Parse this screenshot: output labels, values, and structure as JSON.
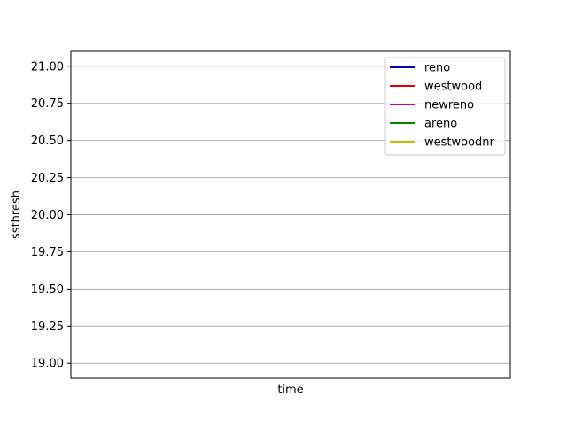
{
  "chart_data": {
    "type": "line",
    "title": "",
    "xlabel": "time",
    "ylabel": "ssthresh",
    "ylim": [
      18.9,
      21.1
    ],
    "yticks": [
      19.0,
      19.25,
      19.5,
      19.75,
      20.0,
      20.25,
      20.5,
      20.75,
      21.0
    ],
    "ytick_labels": [
      "19.00",
      "19.25",
      "19.50",
      "19.75",
      "20.00",
      "20.25",
      "20.50",
      "20.75",
      "21.00"
    ],
    "xticks": [],
    "grid": {
      "y": true,
      "x": false,
      "color": "#b0b0b0"
    },
    "legend": {
      "placement": "top-right"
    },
    "series": [
      {
        "name": "reno",
        "color": "#0000bf",
        "x": [],
        "y": []
      },
      {
        "name": "westwood",
        "color": "#e00000",
        "x": [],
        "y": []
      },
      {
        "name": "newreno",
        "color": "#bf00bf",
        "x": [],
        "y": []
      },
      {
        "name": "areno",
        "color": "#008000",
        "x": [],
        "y": []
      },
      {
        "name": "westwoodnr",
        "color": "#bfbf00",
        "x": [],
        "y": []
      }
    ]
  }
}
